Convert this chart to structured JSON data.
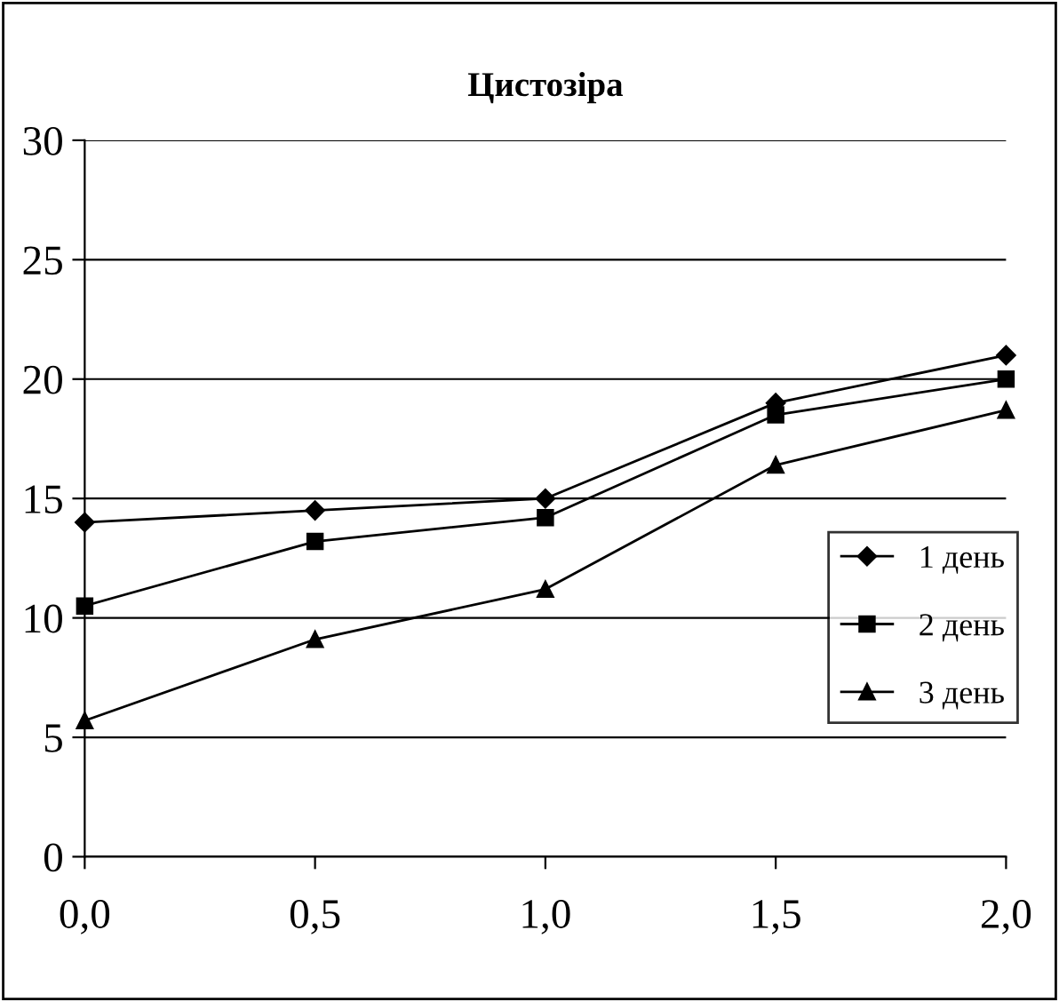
{
  "chart_data": {
    "type": "line",
    "title": "Цистозіра",
    "x": [
      0,
      0.5,
      1,
      1.5,
      2
    ],
    "series": [
      {
        "name": "1 день",
        "color": "#000000",
        "marker": "diamond",
        "values": [
          14,
          14.5,
          15,
          19,
          21
        ]
      },
      {
        "name": "2 день",
        "color": "#000000",
        "marker": "square",
        "values": [
          10.5,
          13.2,
          14.2,
          18.5,
          20
        ]
      },
      {
        "name": "3 день",
        "color": "#000000",
        "marker": "triangle",
        "values": [
          5.7,
          9.1,
          11.2,
          16.4,
          18.7
        ]
      }
    ],
    "xlim": [
      0,
      2
    ],
    "xticks": [
      {
        "value": 0,
        "label": "0,0"
      },
      {
        "value": 0.5,
        "label": "0,5"
      },
      {
        "value": 1,
        "label": "1,0"
      },
      {
        "value": 1.5,
        "label": "1,5"
      },
      {
        "value": 2,
        "label": "2,0"
      }
    ],
    "ylim": [
      0,
      30
    ],
    "yticks": [
      0,
      5,
      10,
      15,
      20,
      25,
      30
    ],
    "grid": "y",
    "legend": "right",
    "line_style": "solid"
  }
}
